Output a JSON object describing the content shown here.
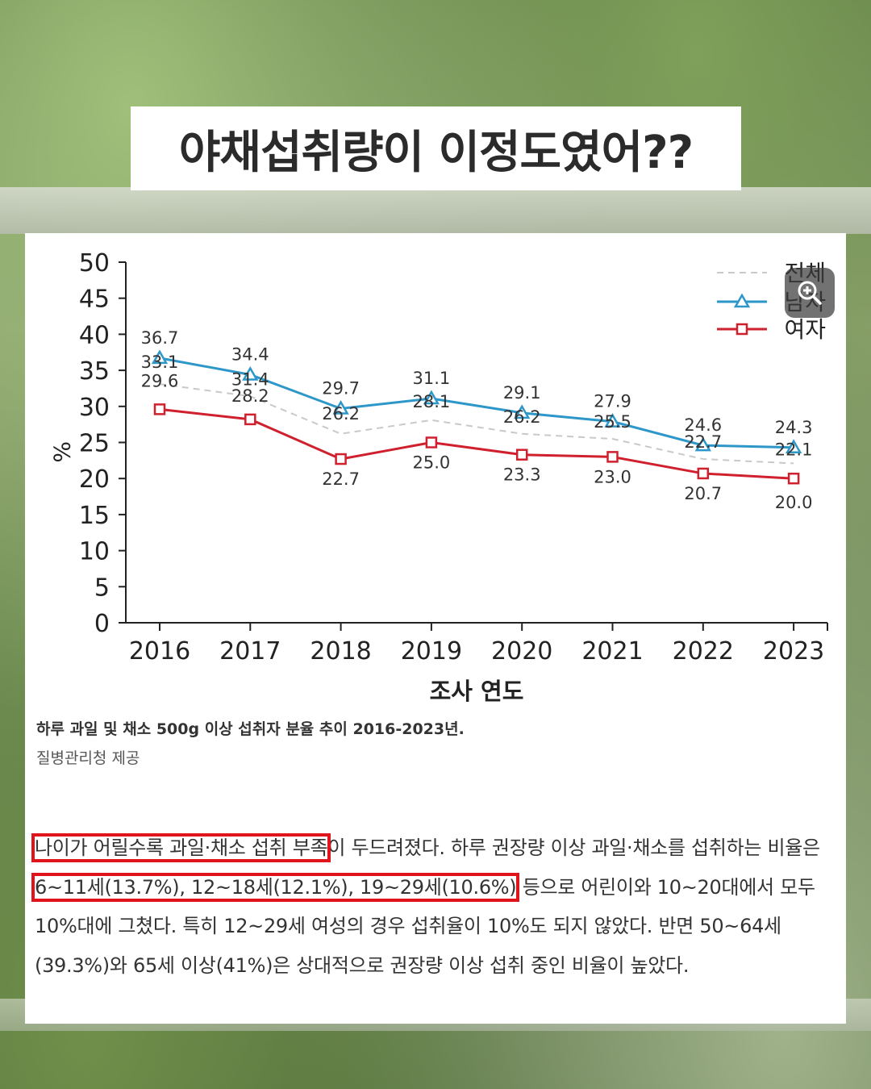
{
  "title": "야채섭취량이 이정도였어??",
  "chart_data": {
    "type": "line",
    "categories": [
      "2016",
      "2017",
      "2018",
      "2019",
      "2020",
      "2021",
      "2022",
      "2023"
    ],
    "series": [
      {
        "name": "전체",
        "values": [
          33.1,
          31.4,
          26.2,
          28.1,
          26.2,
          25.5,
          22.7,
          22.1
        ],
        "color": "#c9c9c9",
        "style": "dashed",
        "marker": "none"
      },
      {
        "name": "남자",
        "values": [
          36.7,
          34.4,
          29.7,
          31.1,
          29.1,
          27.9,
          24.6,
          24.3
        ],
        "color": "#2e97c9",
        "style": "solid",
        "marker": "triangle"
      },
      {
        "name": "여자",
        "values": [
          29.6,
          28.2,
          22.7,
          25.0,
          23.3,
          23.0,
          20.7,
          20.0
        ],
        "color": "#d0202e",
        "style": "solid",
        "marker": "square"
      }
    ],
    "data_labels": {
      "전체": [
        "33.1",
        "31.4",
        "26.2",
        "28.1",
        "26.2",
        "25.5",
        "22.7",
        "22.1"
      ],
      "남자": [
        "36.7",
        "34.4",
        "29.7",
        "31.1",
        "29.1",
        "27.9",
        "24.6",
        "24.3"
      ],
      "여자": [
        "29.6",
        "28.2",
        "22.7",
        "25.0",
        "23.3",
        "23.0",
        "20.7",
        "20.0"
      ]
    },
    "ylabel": "%",
    "xlabel": "조사 연도",
    "ylim": [
      0,
      50
    ],
    "yticks": [
      "0",
      "5",
      "10",
      "15",
      "20",
      "25",
      "30",
      "35",
      "40",
      "45",
      "50"
    ],
    "legend": "top-right",
    "grid": false
  },
  "caption": "하루 과일 및 채소 500g 이상 섭취자 분율 추이 2016-2023년.",
  "credit": "질병관리청 제공",
  "paragraph": {
    "hl1": "나이가 어릴수록 과일·채소 섭취 부족",
    "t1": "이 두드려졌다. 하루 권장량 이상 과일·채소를 섭취하는 비율은 ",
    "hl2": "6~11세(13.7%), 12~18세(12.1%), 19~29세(10.6%)",
    "t2": " 등으로 어린이와 10~20대에서 모두 10%대에 그쳤다. 특히 12~29세 여성의 경우 섭취율이 10%도 되지 않았다. 반면 50~64세(39.3%)와 65세 이상(41%)은 상대적으로 권장량 이상 섭취 중인 비율이 높았다."
  },
  "zoom_icon": "zoom-in-icon"
}
